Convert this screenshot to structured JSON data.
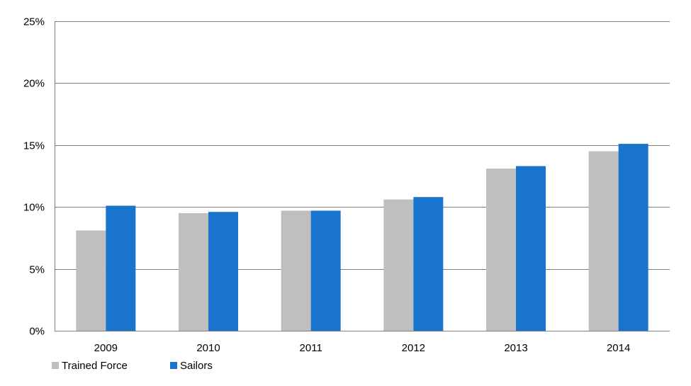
{
  "chart_data": {
    "type": "bar",
    "title": "",
    "xlabel": "",
    "ylabel": "",
    "categories": [
      "2009",
      "2010",
      "2011",
      "2012",
      "2013",
      "2014"
    ],
    "series": [
      {
        "name": "Trained Force",
        "color": "#bfbfbf",
        "values": [
          8.1,
          9.5,
          9.7,
          10.6,
          13.1,
          14.5
        ]
      },
      {
        "name": "Sailors",
        "color": "#1874cd",
        "values": [
          10.1,
          9.6,
          9.7,
          10.8,
          13.3,
          15.1
        ]
      }
    ],
    "ylim": [
      0,
      25
    ],
    "yticks": [
      0,
      5,
      10,
      15,
      20,
      25
    ],
    "ytick_labels": [
      "0%",
      "5%",
      "10%",
      "15%",
      "20%",
      "25%"
    ],
    "grid": true,
    "legend_position": "bottom-left"
  }
}
